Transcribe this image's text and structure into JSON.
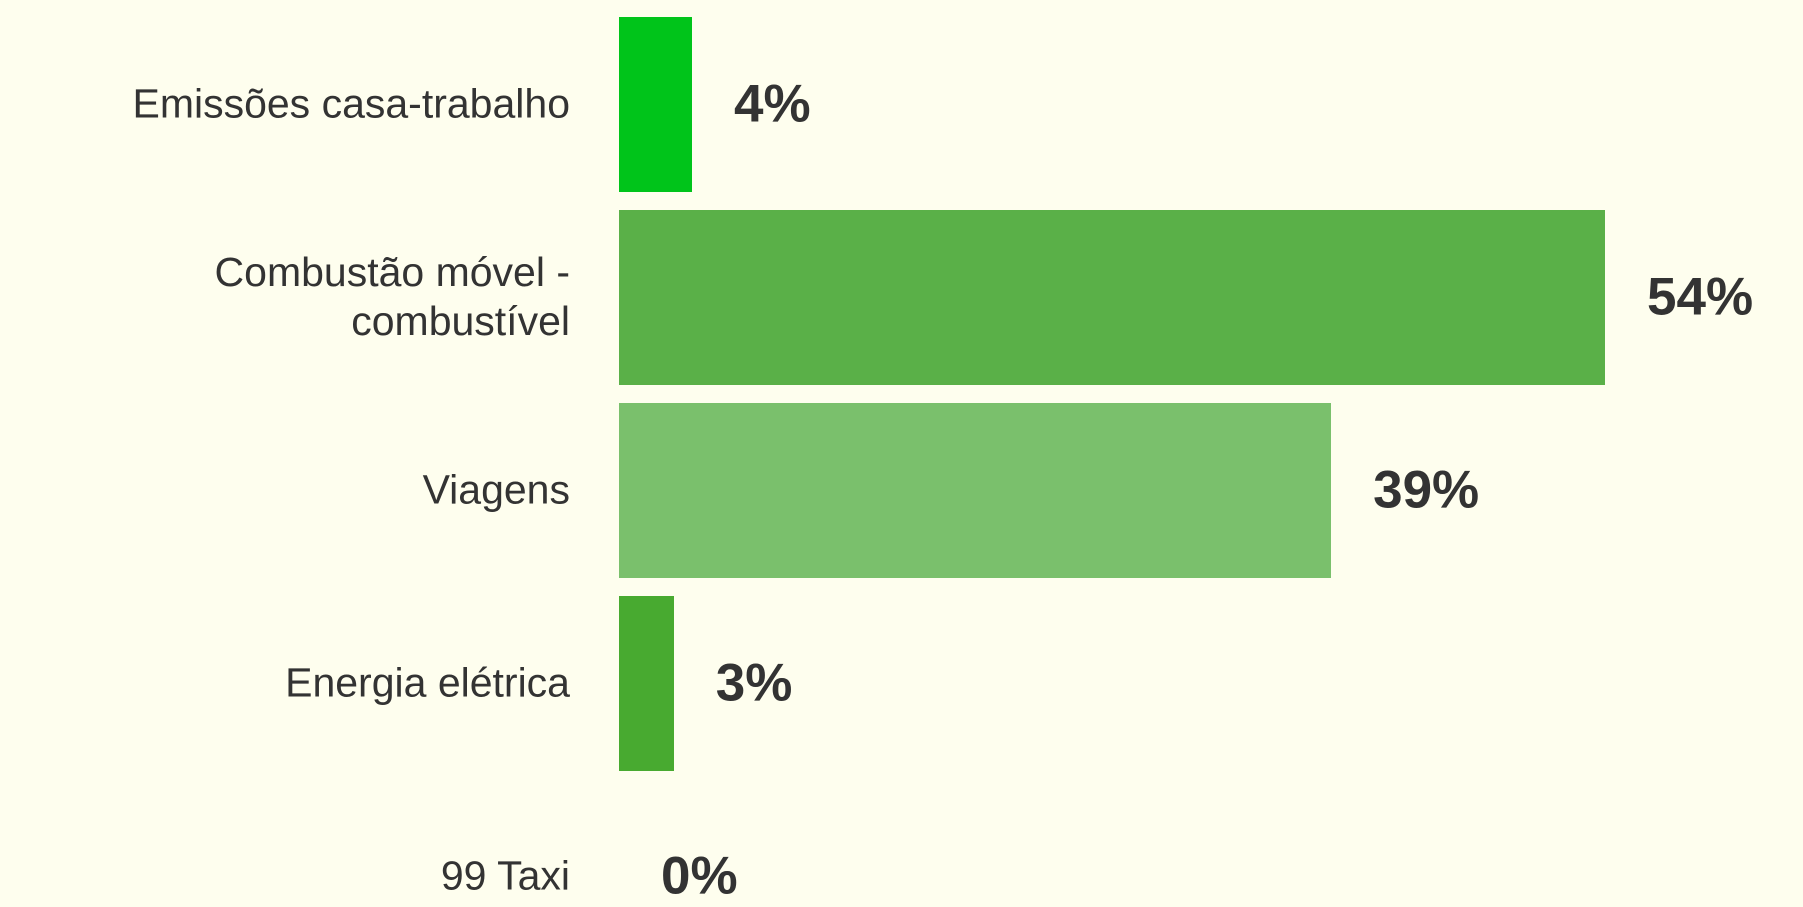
{
  "chart_data": {
    "type": "bar",
    "orientation": "horizontal",
    "categories": [
      "Emissões casa-trabalho",
      "Combustão móvel - combustível",
      "Viagens",
      "Energia elétrica",
      "99 Taxi"
    ],
    "values": [
      4,
      54,
      39,
      3,
      0
    ],
    "value_labels": [
      "4%",
      "54%",
      "39%",
      "3%",
      "0%"
    ],
    "colors": [
      "#00c41a",
      "#5ab048",
      "#7ac06c",
      "#48aa30",
      "#48aa30"
    ]
  }
}
